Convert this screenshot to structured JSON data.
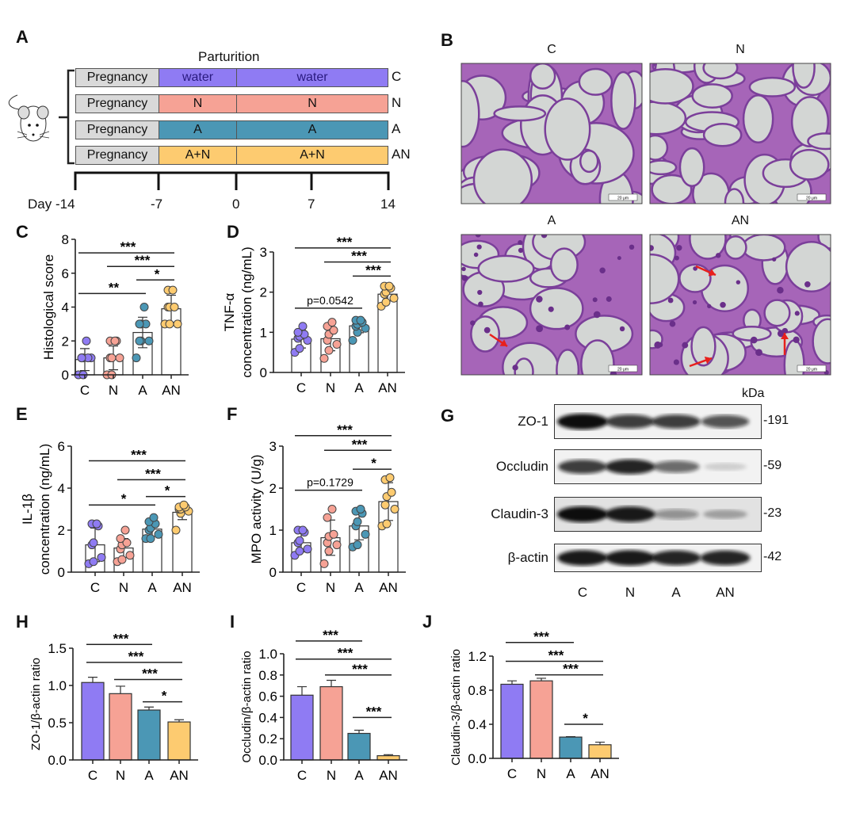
{
  "panels": {
    "A": "A",
    "B": "B",
    "C": "C",
    "D": "D",
    "E": "E",
    "F": "F",
    "G": "G",
    "H": "H",
    "I": "I",
    "J": "J"
  },
  "colors": {
    "C": "#8f7bf3",
    "N": "#f6a295",
    "A": "#4b97b5",
    "AN": "#fdcb70",
    "pregnancy": "#d9d9d9"
  },
  "design": {
    "title": "Parturition",
    "rows": [
      {
        "pre": "Pregnancy",
        "t1": "water",
        "t2": "water",
        "group": "C"
      },
      {
        "pre": "Pregnancy",
        "t1": "N",
        "t2": "N",
        "group": "N"
      },
      {
        "pre": "Pregnancy",
        "t1": "A",
        "t2": "A",
        "group": "A"
      },
      {
        "pre": "Pregnancy",
        "t1": "A+N",
        "t2": "A+N",
        "group": "AN"
      }
    ],
    "timeline": [
      "Day -14",
      "-7",
      "0",
      "7",
      "14"
    ],
    "icon": "mouse-icon"
  },
  "histology": {
    "labels": [
      "C",
      "N",
      "A",
      "AN"
    ],
    "scale_bar": "20 μm"
  },
  "blot": {
    "unit": "kDa",
    "rows": [
      {
        "label": "ZO-1",
        "kda": "-191",
        "intensity": [
          1.0,
          0.8,
          0.8,
          0.7
        ]
      },
      {
        "label": "Occludin",
        "kda": "-59",
        "intensity": [
          0.8,
          0.9,
          0.6,
          0.15
        ]
      },
      {
        "label": "Claudin-3",
        "kda": "-23",
        "intensity": [
          1.0,
          0.95,
          0.4,
          0.3
        ]
      },
      {
        "label": "β-actin",
        "kda": "-42",
        "intensity": [
          0.95,
          0.95,
          0.9,
          0.9
        ]
      }
    ],
    "lanes": [
      "C",
      "N",
      "A",
      "AN"
    ]
  },
  "chart_data": [
    {
      "id": "C",
      "type": "bar",
      "error": "SD",
      "ylabel": "Histological score",
      "ylim": [
        0,
        8
      ],
      "yticks": [
        "0",
        "2",
        "4",
        "6",
        "8"
      ],
      "categories": [
        "C",
        "N",
        "A",
        "AN"
      ],
      "values": [
        0.9,
        1.0,
        2.5,
        3.9
      ],
      "err": [
        0.65,
        0.7,
        0.9,
        0.8
      ],
      "points": [
        [
          0,
          0,
          1,
          1,
          1,
          1,
          1,
          2
        ],
        [
          0,
          0,
          1,
          1,
          1,
          2,
          2,
          2
        ],
        [
          1,
          2,
          2,
          2,
          3,
          3,
          3,
          4
        ],
        [
          3,
          3,
          3,
          4,
          4,
          4,
          5,
          5
        ]
      ],
      "sig": [
        [
          0,
          3,
          "***",
          7.2
        ],
        [
          1,
          3,
          "***",
          6.4
        ],
        [
          2,
          3,
          "*",
          5.6
        ],
        [
          0,
          2,
          "**",
          4.8
        ]
      ]
    },
    {
      "id": "D",
      "type": "bar",
      "error": "SD",
      "ylabel": "TNF-α",
      "ylabel2": "concentration (ng/mL)",
      "ylim": [
        0,
        3
      ],
      "yticks": [
        "0",
        "1",
        "2",
        "3"
      ],
      "categories": [
        "C",
        "N",
        "A",
        "AN"
      ],
      "values": [
        0.83,
        0.84,
        1.16,
        1.95
      ],
      "err": [
        0.22,
        0.3,
        0.17,
        0.17
      ],
      "points": [
        [
          0.5,
          0.6,
          0.8,
          0.85,
          0.9,
          0.95,
          1.0,
          1.15
        ],
        [
          0.35,
          0.55,
          0.7,
          0.8,
          0.95,
          1.05,
          1.15,
          1.25
        ],
        [
          0.8,
          1.0,
          1.1,
          1.15,
          1.2,
          1.25,
          1.3,
          1.3
        ],
        [
          1.65,
          1.75,
          1.85,
          1.95,
          2.0,
          2.1,
          2.15,
          2.15
        ]
      ],
      "sig": [
        [
          0,
          3,
          "***",
          3.1
        ],
        [
          1,
          3,
          "***",
          2.75
        ],
        [
          2,
          3,
          "***",
          2.4
        ],
        [
          0,
          2,
          "p=0.0542",
          1.6
        ]
      ]
    },
    {
      "id": "E",
      "type": "bar",
      "error": "SD",
      "ylabel": "IL-1β",
      "ylabel2": "concentration (ng/mL)",
      "ylim": [
        0,
        6
      ],
      "yticks": [
        "0",
        "2",
        "4",
        "6"
      ],
      "categories": [
        "C",
        "N",
        "A",
        "AN"
      ],
      "values": [
        1.3,
        1.15,
        2.05,
        2.85
      ],
      "err": [
        0.8,
        0.45,
        0.35,
        0.35
      ],
      "points": [
        [
          0.4,
          0.5,
          0.7,
          1.3,
          1.4,
          2.2,
          2.3,
          2.3
        ],
        [
          0.5,
          0.6,
          0.8,
          1.1,
          1.3,
          1.4,
          1.6,
          2.0
        ],
        [
          1.6,
          1.6,
          1.8,
          2.0,
          2.1,
          2.3,
          2.4,
          2.6
        ],
        [
          2.0,
          2.8,
          2.9,
          3.0,
          3.0,
          3.1,
          3.1,
          3.2
        ]
      ],
      "sig": [
        [
          0,
          3,
          "***",
          5.3
        ],
        [
          1,
          3,
          "***",
          4.4
        ],
        [
          2,
          3,
          "*",
          3.6
        ],
        [
          0,
          2,
          "*",
          3.2
        ]
      ]
    },
    {
      "id": "F",
      "type": "bar",
      "error": "SD",
      "ylabel": "MPO activity (U/g)",
      "ylim": [
        0,
        3
      ],
      "yticks": [
        "0",
        "1",
        "2",
        "3"
      ],
      "categories": [
        "C",
        "N",
        "A",
        "AN"
      ],
      "values": [
        0.7,
        0.82,
        1.1,
        1.68
      ],
      "err": [
        0.22,
        0.42,
        0.33,
        0.45
      ],
      "points": [
        [
          0.4,
          0.5,
          0.55,
          0.7,
          0.75,
          0.95,
          1.0,
          1.0
        ],
        [
          0.2,
          0.5,
          0.65,
          0.7,
          0.85,
          0.9,
          1.3,
          1.5
        ],
        [
          0.6,
          0.65,
          0.9,
          1.1,
          1.2,
          1.4,
          1.45,
          1.5
        ],
        [
          1.1,
          1.15,
          1.5,
          1.6,
          1.8,
          1.9,
          2.2,
          2.25
        ]
      ],
      "sig": [
        [
          0,
          3,
          "***",
          3.25
        ],
        [
          1,
          3,
          "***",
          2.9
        ],
        [
          2,
          3,
          "*",
          2.45
        ],
        [
          0,
          2,
          "p=0.1729",
          1.95
        ]
      ]
    },
    {
      "id": "H",
      "type": "bar",
      "error": "SEM",
      "ylabel": "ZO-1/β-actin ratio",
      "ylim": [
        0,
        1.5
      ],
      "yticks": [
        "0.0",
        "0.5",
        "1.0",
        "1.5"
      ],
      "categories": [
        "C",
        "N",
        "A",
        "AN"
      ],
      "values": [
        1.04,
        0.89,
        0.67,
        0.51
      ],
      "err": [
        0.07,
        0.1,
        0.04,
        0.03
      ],
      "sig": [
        [
          0,
          2,
          "***",
          1.55
        ],
        [
          0,
          3,
          "***",
          1.31
        ],
        [
          1,
          3,
          "***",
          1.08
        ],
        [
          2,
          3,
          "*",
          0.78
        ]
      ]
    },
    {
      "id": "I",
      "type": "bar",
      "error": "SEM",
      "ylabel": "Occludin/β-actin ratio",
      "ylim": [
        0,
        1.0
      ],
      "yticks": [
        "0.0",
        "0.2",
        "0.4",
        "0.6",
        "0.8",
        "1.0"
      ],
      "categories": [
        "C",
        "N",
        "A",
        "AN"
      ],
      "values": [
        0.61,
        0.69,
        0.25,
        0.04
      ],
      "err": [
        0.08,
        0.06,
        0.03,
        0.01
      ],
      "sig": [
        [
          0,
          2,
          "***",
          1.12
        ],
        [
          0,
          3,
          "***",
          0.95
        ],
        [
          1,
          3,
          "***",
          0.8
        ],
        [
          2,
          3,
          "***",
          0.4
        ]
      ]
    },
    {
      "id": "J",
      "type": "bar",
      "error": "SEM",
      "ylabel": "Claudin-3/β-actin ratio",
      "ylim": [
        0,
        1.2
      ],
      "yticks": [
        "0.0",
        "0.4",
        "0.8",
        "1.2"
      ],
      "categories": [
        "C",
        "N",
        "A",
        "AN"
      ],
      "values": [
        0.87,
        0.91,
        0.25,
        0.16
      ],
      "err": [
        0.04,
        0.03,
        0.005,
        0.03
      ],
      "sig": [
        [
          0,
          2,
          "***",
          1.36
        ],
        [
          0,
          3,
          "***",
          1.14
        ],
        [
          1,
          3,
          "***",
          0.98
        ],
        [
          2,
          3,
          "*",
          0.4
        ]
      ]
    }
  ]
}
